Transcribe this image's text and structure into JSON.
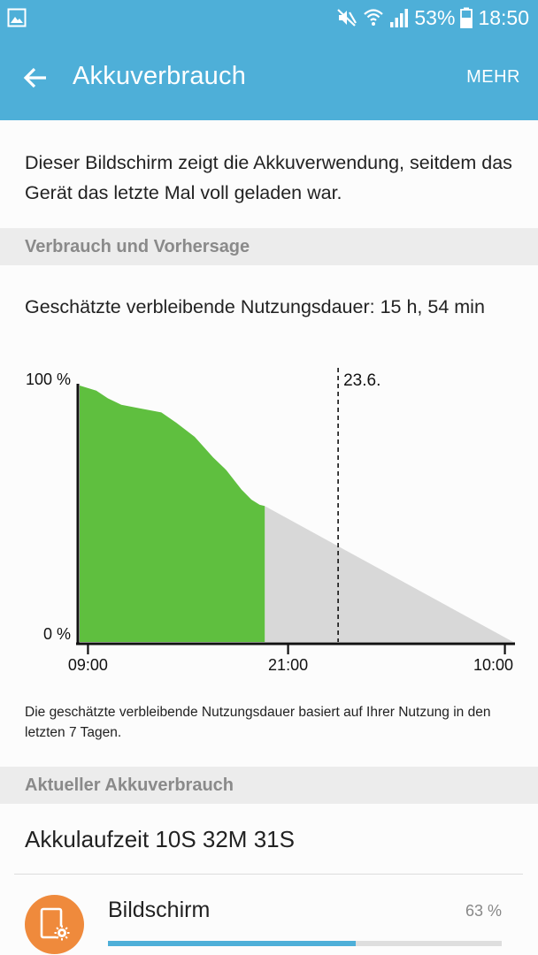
{
  "status_bar": {
    "battery_percent": "53%",
    "time": "18:50",
    "icons": [
      "gallery-icon",
      "mute-icon",
      "wifi-icon",
      "signal-icon",
      "battery-icon"
    ]
  },
  "app_bar": {
    "title": "Akkuverbrauch",
    "more_label": "MEHR",
    "back_icon": "arrow-left-icon"
  },
  "intro_text": "Dieser Bildschirm zeigt die Akkuverwendung, seitdem das Gerät das letzte Mal voll geladen war.",
  "usage_section": {
    "header": "Verbrauch und Vorhersage",
    "estimate": "Geschätzte verbleibende Nutzungsdauer: 15 h, 54 min",
    "note": "Die geschätzte verbleibende Nutzungsdauer basiert auf Ihrer Nutzung in den letzten 7 Tagen."
  },
  "chart_data": {
    "type": "area",
    "x_unit": "hours since 08:30",
    "y_axis": {
      "labels": [
        "100 %",
        "0 %"
      ],
      "range": [
        0,
        100
      ]
    },
    "x_tick_labels": [
      "09:00",
      "21:00",
      "10:00"
    ],
    "x_ticks": [
      0.5,
      12.5,
      25.5
    ],
    "x_range": [
      0,
      26
    ],
    "day_marker": {
      "label": "23.6.",
      "x": 15.5
    },
    "series": [
      {
        "role": "used",
        "color": "#5fbf3f",
        "points": [
          [
            0,
            100
          ],
          [
            1,
            98
          ],
          [
            1.7,
            95
          ],
          [
            2.5,
            92.5
          ],
          [
            3.7,
            91
          ],
          [
            4.9,
            89.5
          ],
          [
            5.8,
            85.5
          ],
          [
            6.9,
            80
          ],
          [
            8,
            72
          ],
          [
            8.8,
            67
          ],
          [
            9.7,
            59.5
          ],
          [
            10.3,
            55.5
          ],
          [
            10.8,
            53.5
          ],
          [
            11.1,
            53
          ]
        ]
      },
      {
        "role": "forecast",
        "color": "#d8d8d8",
        "points": [
          [
            11.1,
            53
          ],
          [
            26,
            0
          ]
        ]
      }
    ]
  },
  "current_section": {
    "header": "Aktueller Akkuverbrauch",
    "runtime": "Akkulaufzeit 10S 32M 31S",
    "apps": [
      {
        "name": "Bildschirm",
        "percent_label": "63 %",
        "usage": 63,
        "icon": "screen-settings-icon",
        "color": "#ef8a3c"
      }
    ]
  }
}
